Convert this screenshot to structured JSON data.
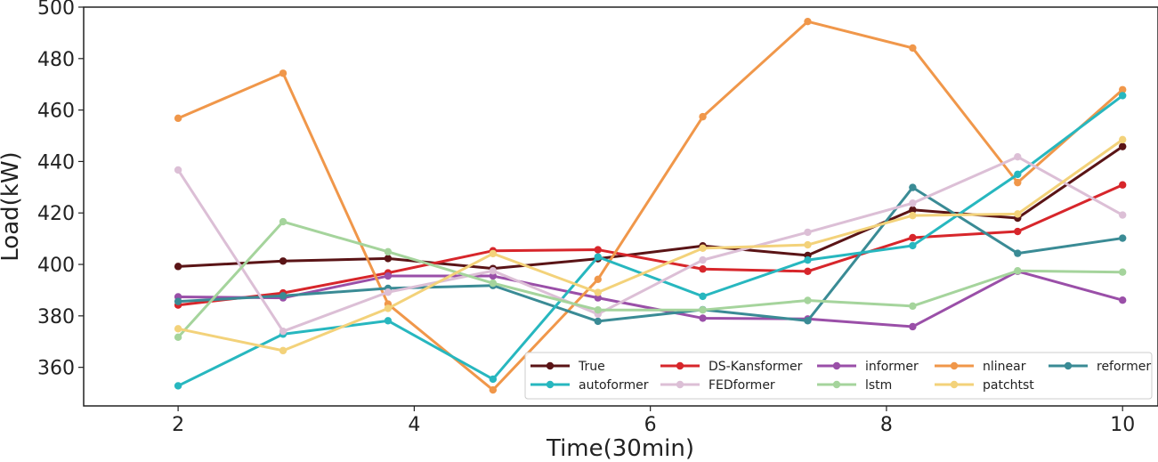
{
  "chart_data": {
    "type": "line",
    "title": "",
    "xlabel": "Time(30min)",
    "ylabel": "Load(kW)",
    "xlim": [
      1.2,
      10.3
    ],
    "ylim": [
      345,
      500
    ],
    "xticks": [
      2,
      4,
      6,
      8,
      10
    ],
    "yticks": [
      360,
      380,
      400,
      420,
      440,
      460,
      480,
      500
    ],
    "x": [
      2,
      2.889,
      3.778,
      4.667,
      5.556,
      6.444,
      7.333,
      8.222,
      9.111,
      10
    ],
    "legend_position": "lower-right",
    "series": [
      {
        "name": "True",
        "color": "#5a1416",
        "values": [
          399.2,
          401.3,
          402.3,
          398.4,
          402.2,
          407.2,
          403.5,
          421.2,
          418.0,
          445.8
        ]
      },
      {
        "name": "DS-Kansformer",
        "color": "#d7262b",
        "values": [
          384.2,
          388.9,
          396.7,
          405.3,
          405.7,
          398.2,
          397.3,
          410.4,
          412.8,
          430.9
        ]
      },
      {
        "name": "informer",
        "color": "#9a4fa8",
        "values": [
          387.4,
          387.0,
          395.5,
          395.5,
          387.0,
          379.1,
          378.8,
          375.8,
          397.3,
          386.1
        ]
      },
      {
        "name": "nlinear",
        "color": "#f0974a",
        "values": [
          456.8,
          474.3,
          384.6,
          351.2,
          394.2,
          457.4,
          494.4,
          484.1,
          431.8,
          467.9
        ]
      },
      {
        "name": "reformer",
        "color": "#3a8b95",
        "values": [
          385.6,
          387.8,
          390.7,
          391.8,
          377.9,
          382.4,
          378.1,
          429.9,
          404.3,
          410.2
        ]
      },
      {
        "name": "autoformer",
        "color": "#27b7bf",
        "values": [
          352.8,
          372.9,
          378.1,
          355.4,
          402.9,
          387.6,
          401.7,
          407.3,
          435.0,
          465.6
        ]
      },
      {
        "name": "FEDformer",
        "color": "#dcbfd6",
        "values": [
          436.7,
          374.0,
          389.2,
          397.5,
          380.7,
          401.7,
          412.5,
          423.8,
          441.8,
          419.2
        ]
      },
      {
        "name": "lstm",
        "color": "#a5d49c",
        "values": [
          371.7,
          416.6,
          404.9,
          392.7,
          382.3,
          382.3,
          386.0,
          383.8,
          397.5,
          397.0
        ]
      },
      {
        "name": "patchtst",
        "color": "#f3d27a",
        "values": [
          375.0,
          366.5,
          382.9,
          404.2,
          389.1,
          406.3,
          407.6,
          419.0,
          419.6,
          448.5
        ]
      }
    ],
    "legend_order": [
      [
        "True",
        "DS-Kansformer",
        "informer",
        "nlinear",
        "reformer"
      ],
      [
        "autoformer",
        "FEDformer",
        "lstm",
        "patchtst"
      ]
    ]
  }
}
